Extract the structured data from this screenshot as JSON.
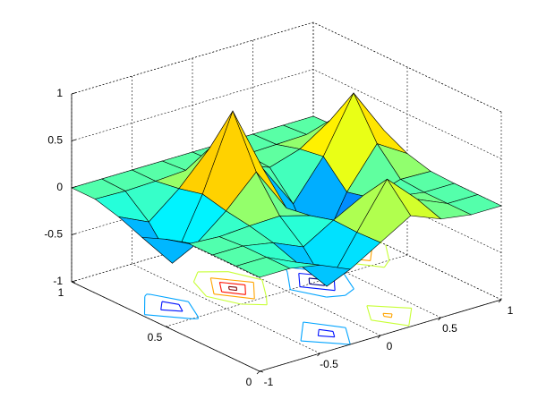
{
  "chart_data": {
    "type": "surfc",
    "colormap": "jet",
    "x": [
      -1,
      -0.75,
      -0.5,
      -0.25,
      0,
      0.25,
      0.5,
      0.75,
      1
    ],
    "y": [
      0,
      0.125,
      0.25,
      0.375,
      0.5,
      0.625,
      0.75,
      0.875,
      1
    ],
    "z": [
      [
        0,
        0,
        -0.06,
        -0.2,
        -0.01,
        0.18,
        0.05,
        0,
        0
      ],
      [
        0,
        0,
        -0.15,
        -0.5,
        -0.02,
        0.45,
        0.14,
        0,
        0
      ],
      [
        0,
        0,
        -0.06,
        -0.2,
        -0.01,
        0.16,
        0.05,
        0,
        0
      ],
      [
        0,
        -0.02,
        0,
        0.01,
        -0.08,
        -0.3,
        -0.08,
        0.02,
        0.01
      ],
      [
        -0.07,
        -0.22,
        0.04,
        0.36,
        -0.12,
        -0.75,
        -0.14,
        0.28,
        0.08
      ],
      [
        -0.17,
        -0.54,
        0.1,
        0.89,
        0.18,
        -0.29,
        0.12,
        0.7,
        0.21
      ],
      [
        -0.07,
        -0.22,
        0.04,
        0.37,
        0.1,
        -0.02,
        0.08,
        0.29,
        0.08
      ],
      [
        0,
        -0.01,
        0,
        0.02,
        0.01,
        0,
        0.01,
        0.02,
        0.01
      ],
      [
        0,
        0,
        0,
        0,
        0,
        0,
        0,
        0,
        0
      ]
    ],
    "contour_levels": [
      -0.6,
      -0.4,
      -0.2,
      0.2,
      0.4,
      0.6,
      0.8
    ],
    "xlim": [
      -1,
      1
    ],
    "ylim": [
      0,
      1
    ],
    "zlim": [
      -1,
      1
    ],
    "xticks": [
      -1,
      -0.5,
      0,
      0.5,
      1
    ],
    "yticks": [
      0,
      0.5,
      1
    ],
    "zticks": [
      -1,
      -0.5,
      0,
      0.5,
      1
    ],
    "grid": true
  }
}
